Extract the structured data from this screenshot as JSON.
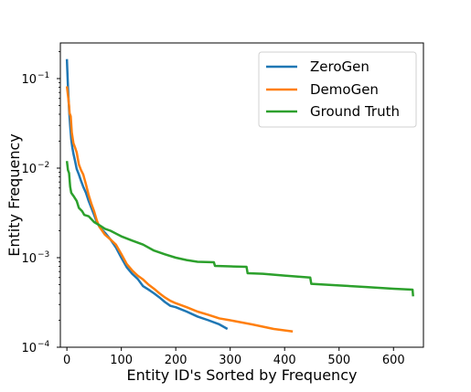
{
  "chart_data": {
    "type": "line",
    "xlabel": "Entity ID's Sorted by Frequency",
    "ylabel": "Entity Frequency",
    "xlim": [
      -12,
      655
    ],
    "ylim": [
      0.0001,
      0.25
    ],
    "yscale": "log",
    "grid": false,
    "legend_position": "top-right",
    "x_ticks": [
      0,
      100,
      200,
      300,
      400,
      500,
      600
    ],
    "x_tick_labels": [
      "0",
      "100",
      "200",
      "300",
      "400",
      "500",
      "600"
    ],
    "y_ticks": [
      0.0001,
      0.001,
      0.01,
      0.1
    ],
    "y_tick_labels": [
      {
        "base": "10",
        "exp": "−4"
      },
      {
        "base": "10",
        "exp": "−3"
      },
      {
        "base": "10",
        "exp": "−2"
      },
      {
        "base": "10",
        "exp": "−1"
      }
    ],
    "series": [
      {
        "name": "ZeroGen",
        "color": "#1f77b4",
        "points": [
          [
            0,
            0.165
          ],
          [
            2,
            0.08
          ],
          [
            4,
            0.045
          ],
          [
            6,
            0.03
          ],
          [
            8,
            0.021
          ],
          [
            10,
            0.017
          ],
          [
            12,
            0.0145
          ],
          [
            15,
            0.012
          ],
          [
            18,
            0.0098
          ],
          [
            22,
            0.0085
          ],
          [
            26,
            0.0072
          ],
          [
            30,
            0.0062
          ],
          [
            35,
            0.0053
          ],
          [
            40,
            0.0043
          ],
          [
            45,
            0.0036
          ],
          [
            50,
            0.003
          ],
          [
            55,
            0.0025
          ],
          [
            60,
            0.0022
          ],
          [
            70,
            0.0019
          ],
          [
            80,
            0.0016
          ],
          [
            90,
            0.0013
          ],
          [
            100,
            0.001
          ],
          [
            110,
            0.00078
          ],
          [
            120,
            0.00066
          ],
          [
            130,
            0.00058
          ],
          [
            140,
            0.00048
          ],
          [
            150,
            0.00044
          ],
          [
            160,
            0.0004
          ],
          [
            170,
            0.00036
          ],
          [
            180,
            0.00032
          ],
          [
            190,
            0.00029
          ],
          [
            200,
            0.00028
          ],
          [
            220,
            0.00025
          ],
          [
            240,
            0.00022
          ],
          [
            260,
            0.0002
          ],
          [
            280,
            0.00018
          ],
          [
            295,
            0.00016
          ]
        ]
      },
      {
        "name": "DemoGen",
        "color": "#ff7f0e",
        "points": [
          [
            0,
            0.082
          ],
          [
            2,
            0.065
          ],
          [
            4,
            0.05
          ],
          [
            5,
            0.041
          ],
          [
            7,
            0.038
          ],
          [
            9,
            0.025
          ],
          [
            12,
            0.019
          ],
          [
            15,
            0.017
          ],
          [
            18,
            0.015
          ],
          [
            22,
            0.011
          ],
          [
            26,
            0.0095
          ],
          [
            30,
            0.0085
          ],
          [
            35,
            0.0066
          ],
          [
            40,
            0.005
          ],
          [
            45,
            0.004
          ],
          [
            50,
            0.0033
          ],
          [
            55,
            0.0026
          ],
          [
            60,
            0.0022
          ],
          [
            70,
            0.0018
          ],
          [
            80,
            0.0016
          ],
          [
            90,
            0.0014
          ],
          [
            100,
            0.0011
          ],
          [
            110,
            0.00085
          ],
          [
            120,
            0.00072
          ],
          [
            130,
            0.00063
          ],
          [
            140,
            0.00057
          ],
          [
            150,
            0.0005
          ],
          [
            160,
            0.00045
          ],
          [
            170,
            0.0004
          ],
          [
            180,
            0.00036
          ],
          [
            190,
            0.00033
          ],
          [
            200,
            0.00031
          ],
          [
            220,
            0.00028
          ],
          [
            240,
            0.00025
          ],
          [
            260,
            0.00023
          ],
          [
            280,
            0.00021
          ],
          [
            300,
            0.0002
          ],
          [
            340,
            0.00018
          ],
          [
            380,
            0.00016
          ],
          [
            415,
            0.00015
          ]
        ]
      },
      {
        "name": "Ground Truth",
        "color": "#2ca02c",
        "points": [
          [
            0,
            0.012
          ],
          [
            2,
            0.0095
          ],
          [
            4,
            0.0088
          ],
          [
            6,
            0.0062
          ],
          [
            8,
            0.0053
          ],
          [
            12,
            0.0049
          ],
          [
            18,
            0.0043
          ],
          [
            22,
            0.0036
          ],
          [
            28,
            0.0033
          ],
          [
            32,
            0.003
          ],
          [
            40,
            0.0029
          ],
          [
            50,
            0.0025
          ],
          [
            60,
            0.0023
          ],
          [
            70,
            0.0021
          ],
          [
            80,
            0.002
          ],
          [
            100,
            0.00173
          ],
          [
            120,
            0.00155
          ],
          [
            140,
            0.0014
          ],
          [
            160,
            0.0012
          ],
          [
            180,
            0.00109
          ],
          [
            200,
            0.001
          ],
          [
            220,
            0.00094
          ],
          [
            240,
            0.0009
          ],
          [
            270,
            0.00089
          ],
          [
            272,
            0.00081
          ],
          [
            300,
            0.0008
          ],
          [
            330,
            0.00079
          ],
          [
            332,
            0.00067
          ],
          [
            360,
            0.00066
          ],
          [
            400,
            0.00063
          ],
          [
            447,
            0.0006
          ],
          [
            449,
            0.00051
          ],
          [
            500,
            0.00049
          ],
          [
            550,
            0.00047
          ],
          [
            600,
            0.00045
          ],
          [
            635,
            0.00044
          ],
          [
            636,
            0.00037
          ]
        ]
      }
    ]
  }
}
